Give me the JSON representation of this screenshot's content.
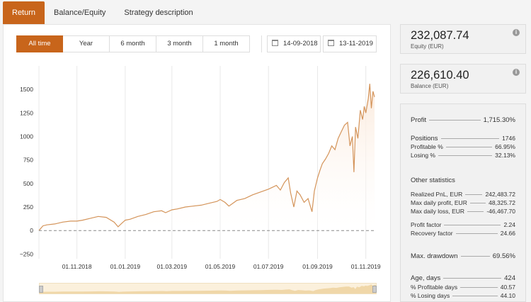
{
  "tabs": [
    "Return",
    "Balance/Equity",
    "Strategy description"
  ],
  "periods": [
    "All time",
    "Year",
    "6 month",
    "3 month",
    "1 month"
  ],
  "date_from": "14-09-2018",
  "date_to": "13-11-2019",
  "equity": {
    "value": "232,087.74",
    "label": "Equity (EUR)"
  },
  "balance": {
    "value": "226,610.40",
    "label": "Balance (EUR)"
  },
  "info_icon": "i",
  "stats": {
    "profit": {
      "k": "Profit",
      "v": "1,715.30%"
    },
    "positions": {
      "k": "Positions",
      "v": "1746"
    },
    "profitable_pct": {
      "k": "Profitable %",
      "v": "66.95%"
    },
    "losing_pct": {
      "k": "Losing %",
      "v": "32.13%"
    },
    "other_heading": "Other statistics",
    "realized": {
      "k": "Realized PnL, EUR",
      "v": "242,483.72"
    },
    "max_profit": {
      "k": "Max daily profit, EUR",
      "v": "48,325.72"
    },
    "max_loss": {
      "k": "Max daily loss, EUR",
      "v": "-46,467.70"
    },
    "profit_factor": {
      "k": "Profit factor",
      "v": "2.24"
    },
    "recovery_factor": {
      "k": "Recovery factor",
      "v": "24.66"
    },
    "max_drawdown": {
      "k": "Max. drawdown",
      "v": "69.56%"
    },
    "age": {
      "k": "Age, days",
      "v": "424"
    },
    "profitable_days": {
      "k": "% Profitable days",
      "v": "40.57"
    },
    "losing_days": {
      "k": "% Losing days",
      "v": "44.10"
    }
  },
  "chart_data": {
    "type": "area",
    "y_ticks": [
      "1500",
      "1250",
      "1000",
      "750",
      "500",
      "250",
      "0",
      "−250"
    ],
    "y_tick_values": [
      1500,
      1250,
      1000,
      750,
      500,
      250,
      0,
      -250
    ],
    "x_ticks": [
      "01.11.2018",
      "01.01.2019",
      "01.03.2019",
      "01.05.2019",
      "01.07.2019",
      "01.09.2019",
      "01.11.2019"
    ],
    "x_tick_days": [
      48,
      109,
      168,
      229,
      290,
      352,
      413
    ],
    "ylim": [
      -300,
      1750
    ],
    "xlim_days": [
      0,
      424
    ],
    "grid": true,
    "line_color": "#d4945a",
    "fill_color": "#fbeadc",
    "zero_line_color": "#888888",
    "series": [
      {
        "x": [
          0,
          5,
          10,
          20,
          30,
          40,
          48,
          55,
          65,
          75,
          85,
          95,
          100,
          105,
          109,
          115,
          125,
          135,
          145,
          155,
          160,
          168,
          175,
          185,
          195,
          205,
          215,
          225,
          229,
          235,
          240,
          245,
          250,
          260,
          270,
          280,
          290,
          295,
          300,
          305,
          310,
          315,
          318,
          322,
          326,
          330,
          335,
          340,
          345,
          348,
          352,
          355,
          358,
          362,
          366,
          370,
          374,
          378,
          382,
          386,
          390,
          393,
          396,
          398,
          400,
          403,
          406,
          409,
          411,
          413,
          416,
          418,
          420,
          422,
          424
        ],
        "y": [
          0,
          50,
          60,
          70,
          90,
          100,
          100,
          110,
          130,
          150,
          140,
          90,
          40,
          80,
          110,
          120,
          150,
          170,
          200,
          210,
          190,
          220,
          230,
          250,
          260,
          270,
          290,
          310,
          330,
          300,
          260,
          290,
          320,
          340,
          380,
          410,
          440,
          460,
          480,
          430,
          510,
          560,
          400,
          250,
          420,
          380,
          300,
          340,
          200,
          420,
          560,
          640,
          710,
          760,
          820,
          900,
          860,
          980,
          1050,
          1120,
          1150,
          900,
          1000,
          620,
          1100,
          980,
          1280,
          1180,
          1320,
          1250,
          1400,
          1560,
          1300,
          1480,
          1420
        ]
      }
    ]
  }
}
